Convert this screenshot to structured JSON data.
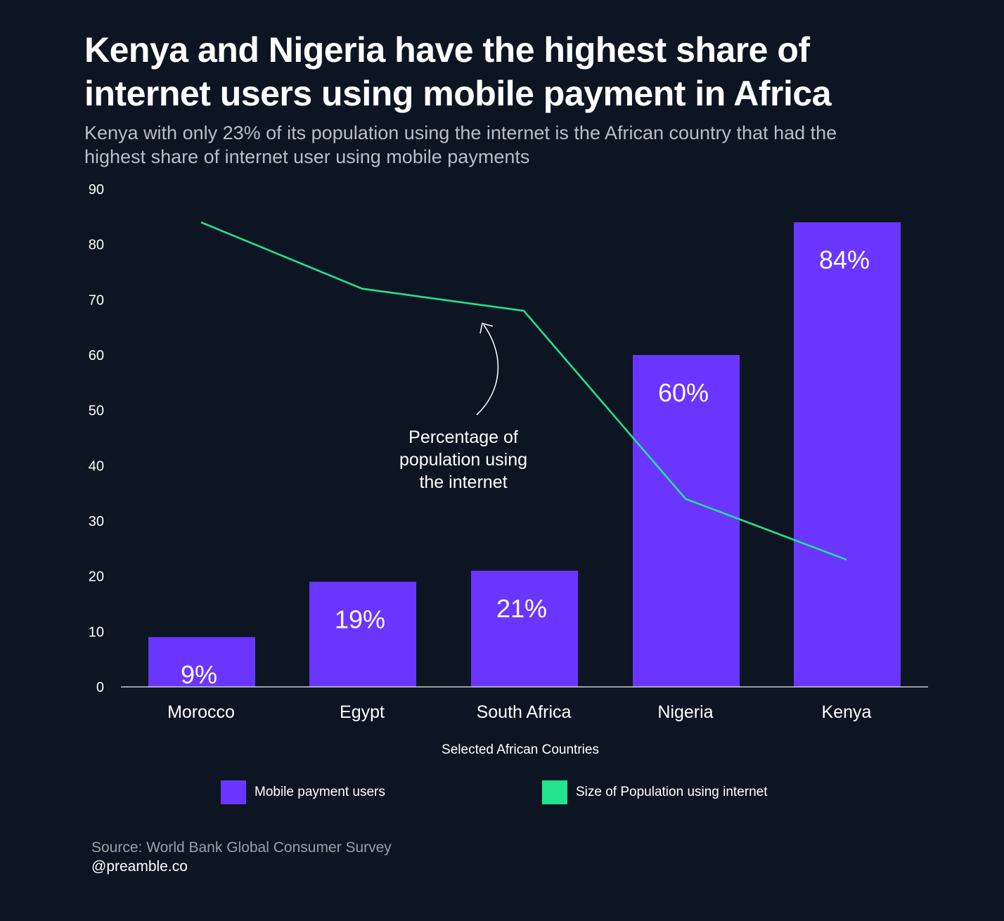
{
  "title": "Kenya and Nigeria have the highest share of internet users using mobile payment in Africa",
  "subtitle": "Kenya with only 23% of its population using the internet is the African country that had the highest share of internet user using mobile payments",
  "chart_data": {
    "type": "bar",
    "categories": [
      "Morocco",
      "Egypt",
      "South Africa",
      "Nigeria",
      "Kenya"
    ],
    "series": [
      {
        "name": "Mobile payment users",
        "type": "bar",
        "values": [
          9,
          19,
          21,
          60,
          84
        ],
        "labels": [
          "9%",
          "19%",
          "21%",
          "60%",
          "84%"
        ],
        "color": "#6a36ff"
      },
      {
        "name": "Size of Population using internet",
        "type": "line",
        "values": [
          84,
          72,
          68,
          34,
          23
        ],
        "color": "#22e38f"
      }
    ],
    "xlabel": "Selected African Countries",
    "ylabel": "",
    "ylim": [
      0,
      90
    ],
    "yticks": [
      0,
      10,
      20,
      30,
      40,
      50,
      60,
      70,
      80,
      90
    ],
    "annotation": {
      "text_lines": [
        "Percentage of",
        "population using",
        "the internet"
      ]
    },
    "legend_position": "bottom",
    "grid": false
  },
  "source": "Source: World Bank Global Consumer Survey",
  "handle": "@preamble.co"
}
